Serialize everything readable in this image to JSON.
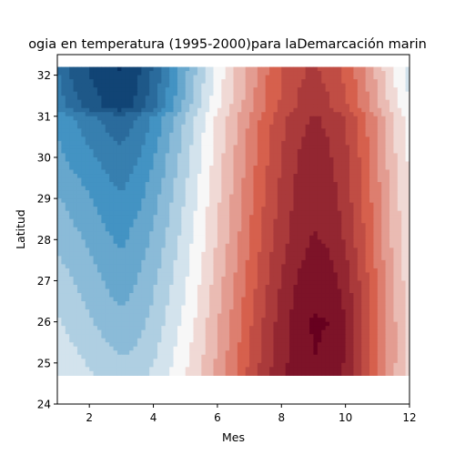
{
  "chart_data": {
    "type": "heatmap",
    "title": "ogia en temperatura (1995-2000)para laDemarcación marin",
    "xlabel": "Mes",
    "ylabel": "Latitud",
    "xlim": [
      1,
      12
    ],
    "ylim": [
      24,
      32.5
    ],
    "xticks": [
      "2",
      "4",
      "6",
      "8",
      "10",
      "12"
    ],
    "yticks": [
      "24",
      "25",
      "26",
      "27",
      "28",
      "29",
      "30",
      "31",
      "32"
    ],
    "colormap": "RdBu_r",
    "colors": {
      "darkest_blue": "#053061",
      "mid_blue": "#4393c3",
      "white": "#f7f7f7",
      "mid_red": "#d6604d",
      "darkest_red": "#67001f"
    },
    "data_extent": {
      "lat_min": 24.7,
      "lat_max": 32.2,
      "month_min": 1,
      "month_max": 12
    },
    "latitudes": [
      32.2,
      31.2,
      31.0,
      30.0,
      29.0,
      28.0,
      27.0,
      26.0,
      25.0,
      24.7
    ],
    "months": [
      1,
      1.5,
      2,
      2.5,
      3,
      3.5,
      4,
      4.5,
      5,
      5.5,
      6,
      6.5,
      7,
      7.5,
      8,
      8.5,
      9,
      9.5,
      10,
      10.5,
      11,
      11.5,
      12
    ],
    "anomaly_grid": [
      [
        -0.65,
        -0.79,
        -0.86,
        -0.92,
        -0.96,
        -0.88,
        -0.74,
        -0.56,
        -0.38,
        -0.19,
        -0.02,
        0.13,
        0.28,
        0.43,
        0.55,
        0.63,
        0.66,
        0.62,
        0.52,
        0.38,
        0.21,
        0.04,
        -0.1
      ],
      [
        -0.58,
        -0.7,
        -0.79,
        -0.86,
        -0.9,
        -0.82,
        -0.68,
        -0.5,
        -0.31,
        -0.14,
        0.03,
        0.17,
        0.31,
        0.45,
        0.57,
        0.66,
        0.7,
        0.66,
        0.57,
        0.43,
        0.27,
        0.1,
        -0.05
      ],
      [
        -0.48,
        -0.55,
        -0.62,
        -0.68,
        -0.72,
        -0.65,
        -0.54,
        -0.4,
        -0.24,
        -0.08,
        0.07,
        0.21,
        0.36,
        0.5,
        0.62,
        0.71,
        0.76,
        0.73,
        0.64,
        0.5,
        0.33,
        0.15,
        0.0
      ],
      [
        -0.42,
        -0.48,
        -0.53,
        -0.58,
        -0.62,
        -0.56,
        -0.46,
        -0.33,
        -0.19,
        -0.05,
        0.1,
        0.24,
        0.39,
        0.53,
        0.65,
        0.75,
        0.8,
        0.76,
        0.68,
        0.53,
        0.36,
        0.17,
        0.03
      ],
      [
        -0.34,
        -0.39,
        -0.44,
        -0.5,
        -0.54,
        -0.48,
        -0.39,
        -0.27,
        -0.14,
        -0.01,
        0.13,
        0.27,
        0.42,
        0.56,
        0.68,
        0.78,
        0.83,
        0.8,
        0.7,
        0.56,
        0.38,
        0.2,
        0.05
      ],
      [
        -0.27,
        -0.32,
        -0.37,
        -0.43,
        -0.47,
        -0.41,
        -0.33,
        -0.22,
        -0.1,
        0.02,
        0.16,
        0.3,
        0.45,
        0.59,
        0.71,
        0.8,
        0.86,
        0.83,
        0.74,
        0.58,
        0.4,
        0.22,
        0.07
      ],
      [
        -0.2,
        -0.25,
        -0.3,
        -0.36,
        -0.4,
        -0.35,
        -0.27,
        -0.17,
        -0.06,
        0.06,
        0.2,
        0.34,
        0.49,
        0.63,
        0.76,
        0.86,
        0.92,
        0.9,
        0.8,
        0.63,
        0.44,
        0.25,
        0.09
      ],
      [
        -0.14,
        -0.19,
        -0.24,
        -0.29,
        -0.33,
        -0.29,
        -0.22,
        -0.12,
        -0.02,
        0.1,
        0.24,
        0.38,
        0.53,
        0.67,
        0.8,
        0.9,
        0.96,
        0.95,
        0.85,
        0.67,
        0.47,
        0.27,
        0.11
      ],
      [
        -0.08,
        -0.12,
        -0.16,
        -0.2,
        -0.24,
        -0.21,
        -0.15,
        -0.07,
        0.03,
        0.14,
        0.27,
        0.41,
        0.56,
        0.7,
        0.82,
        0.9,
        0.95,
        0.93,
        0.84,
        0.66,
        0.46,
        0.27,
        0.12
      ],
      [
        -0.06,
        -0.1,
        -0.14,
        -0.18,
        -0.22,
        -0.19,
        -0.13,
        -0.05,
        0.05,
        0.16,
        0.29,
        0.43,
        0.58,
        0.72,
        0.83,
        0.9,
        0.94,
        0.91,
        0.82,
        0.64,
        0.44,
        0.26,
        0.11
      ]
    ],
    "grid": false,
    "legend": "none"
  }
}
